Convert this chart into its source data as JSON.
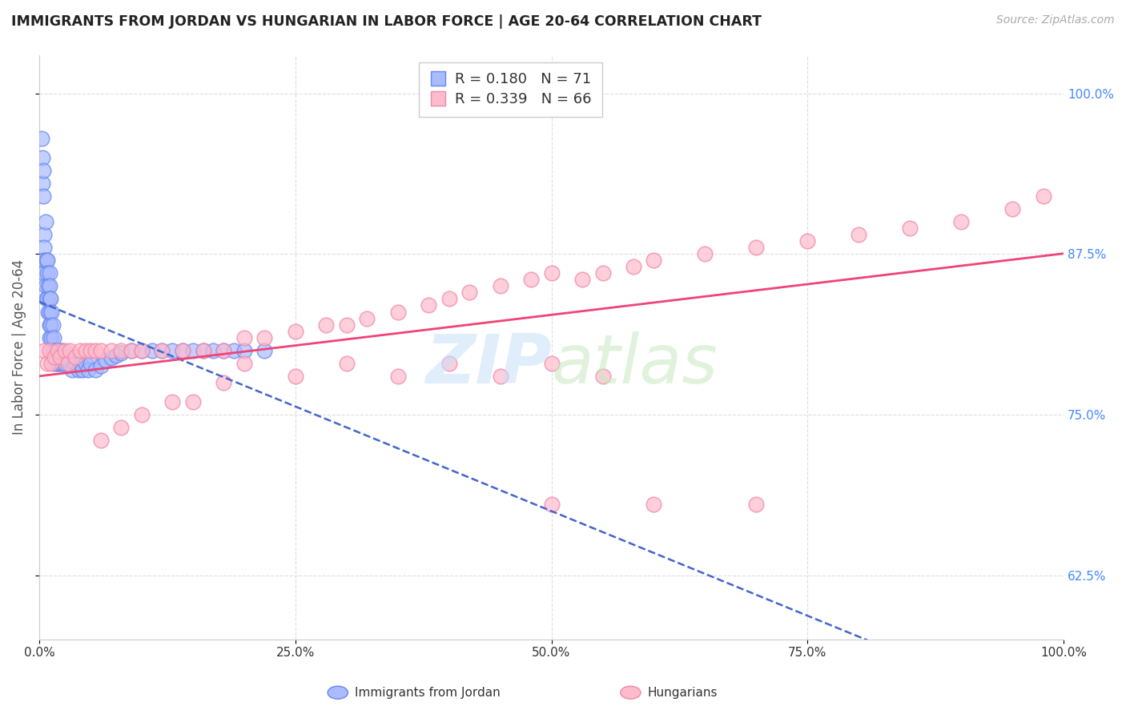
{
  "title": "IMMIGRANTS FROM JORDAN VS HUNGARIAN IN LABOR FORCE | AGE 20-64 CORRELATION CHART",
  "source": "Source: ZipAtlas.com",
  "ylabel": "In Labor Force | Age 20-64",
  "legend_label_1": "Immigrants from Jordan",
  "legend_label_2": "Hungarians",
  "R1": 0.18,
  "N1": 71,
  "R2": 0.339,
  "N2": 66,
  "color1_face": "#aabbff",
  "color1_edge": "#6688ee",
  "color2_face": "#ffbbcc",
  "color2_edge": "#ee88aa",
  "trend1_color": "#4466cc",
  "trend2_color": "#ee4477",
  "legend_r1_color": "#4499ff",
  "legend_n1_color": "#ff4444",
  "legend_r2_color": "#ff77aa",
  "legend_n2_color": "#ff4444",
  "background_color": "#ffffff",
  "grid_color": "#dddddd",
  "watermark": "ZIPatlas",
  "jordan_x": [
    0.002,
    0.003,
    0.003,
    0.004,
    0.004,
    0.005,
    0.005,
    0.005,
    0.005,
    0.006,
    0.006,
    0.007,
    0.007,
    0.008,
    0.008,
    0.008,
    0.009,
    0.009,
    0.01,
    0.01,
    0.01,
    0.01,
    0.01,
    0.01,
    0.011,
    0.011,
    0.012,
    0.012,
    0.013,
    0.013,
    0.014,
    0.015,
    0.015,
    0.016,
    0.017,
    0.018,
    0.019,
    0.02,
    0.021,
    0.022,
    0.023,
    0.025,
    0.027,
    0.03,
    0.032,
    0.035,
    0.038,
    0.04,
    0.042,
    0.045,
    0.048,
    0.05,
    0.055,
    0.06,
    0.065,
    0.07,
    0.075,
    0.08,
    0.09,
    0.1,
    0.11,
    0.12,
    0.13,
    0.14,
    0.15,
    0.16,
    0.17,
    0.18,
    0.19,
    0.2,
    0.22
  ],
  "jordan_y": [
    0.965,
    0.95,
    0.93,
    0.92,
    0.94,
    0.89,
    0.88,
    0.87,
    0.86,
    0.9,
    0.85,
    0.84,
    0.87,
    0.87,
    0.84,
    0.86,
    0.85,
    0.83,
    0.86,
    0.85,
    0.84,
    0.83,
    0.82,
    0.81,
    0.84,
    0.82,
    0.83,
    0.81,
    0.82,
    0.8,
    0.81,
    0.8,
    0.79,
    0.8,
    0.79,
    0.8,
    0.79,
    0.8,
    0.79,
    0.8,
    0.79,
    0.79,
    0.795,
    0.79,
    0.785,
    0.79,
    0.785,
    0.79,
    0.785,
    0.79,
    0.785,
    0.79,
    0.785,
    0.788,
    0.792,
    0.794,
    0.796,
    0.798,
    0.8,
    0.8,
    0.8,
    0.8,
    0.8,
    0.8,
    0.8,
    0.8,
    0.8,
    0.8,
    0.8,
    0.8,
    0.8
  ],
  "hungarian_x": [
    0.005,
    0.008,
    0.01,
    0.012,
    0.015,
    0.018,
    0.02,
    0.025,
    0.028,
    0.03,
    0.035,
    0.04,
    0.045,
    0.05,
    0.055,
    0.06,
    0.07,
    0.08,
    0.09,
    0.1,
    0.12,
    0.14,
    0.16,
    0.18,
    0.2,
    0.22,
    0.25,
    0.28,
    0.3,
    0.32,
    0.35,
    0.38,
    0.4,
    0.42,
    0.45,
    0.48,
    0.5,
    0.53,
    0.55,
    0.58,
    0.6,
    0.65,
    0.7,
    0.75,
    0.8,
    0.85,
    0.9,
    0.95,
    0.98,
    0.2,
    0.25,
    0.3,
    0.15,
    0.18,
    0.35,
    0.4,
    0.45,
    0.5,
    0.55,
    0.13,
    0.1,
    0.08,
    0.06,
    0.5,
    0.6,
    0.7
  ],
  "hungarian_y": [
    0.8,
    0.79,
    0.8,
    0.79,
    0.795,
    0.8,
    0.795,
    0.8,
    0.79,
    0.8,
    0.795,
    0.8,
    0.8,
    0.8,
    0.8,
    0.8,
    0.8,
    0.8,
    0.8,
    0.8,
    0.8,
    0.8,
    0.8,
    0.8,
    0.81,
    0.81,
    0.815,
    0.82,
    0.82,
    0.825,
    0.83,
    0.835,
    0.84,
    0.845,
    0.85,
    0.855,
    0.86,
    0.855,
    0.86,
    0.865,
    0.87,
    0.875,
    0.88,
    0.885,
    0.89,
    0.895,
    0.9,
    0.91,
    0.92,
    0.79,
    0.78,
    0.79,
    0.76,
    0.775,
    0.78,
    0.79,
    0.78,
    0.79,
    0.78,
    0.76,
    0.75,
    0.74,
    0.73,
    0.68,
    0.68,
    0.68
  ],
  "xlim": [
    0.0,
    1.0
  ],
  "ylim": [
    0.575,
    1.03
  ],
  "yticks": [
    0.625,
    0.75,
    0.875,
    1.0
  ],
  "ytick_labels": [
    "62.5%",
    "75.0%",
    "87.5%",
    "100.0%"
  ],
  "xticks": [
    0.0,
    0.25,
    0.5,
    0.75,
    1.0
  ],
  "xtick_labels": [
    "0.0%",
    "25.0%",
    "50.0%",
    "75.0%",
    "100.0%"
  ]
}
